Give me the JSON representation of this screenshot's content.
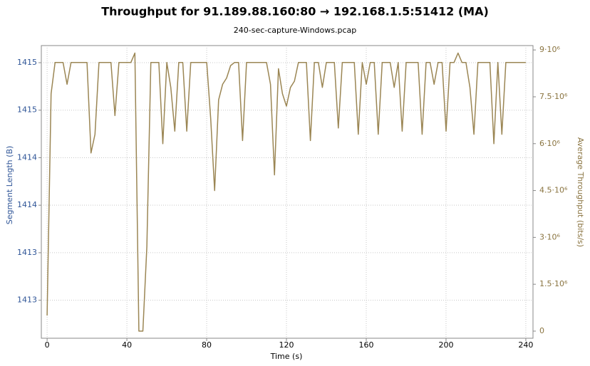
{
  "chart_data": {
    "type": "line",
    "title": "Throughput for 91.189.88.160:80 → 192.168.1.5:51412 (MA)",
    "subtitle": "240-sec-capture-Windows.pcap",
    "x_label": "Time (s)",
    "y_label": "Segment Length (B)",
    "y2_label": "Average Throughput (bits/s)",
    "xlim": [
      -2.9,
      243.6
    ],
    "xticks": [
      0,
      40,
      80,
      120,
      160,
      200,
      240
    ],
    "ylim": [
      1412.2,
      1415.28
    ],
    "yticks": [
      {
        "value": 1412.6,
        "label": "1413"
      },
      {
        "value": 1413.1,
        "label": "1413"
      },
      {
        "value": 1413.6,
        "label": "1414"
      },
      {
        "value": 1414.1,
        "label": "1414"
      },
      {
        "value": 1414.6,
        "label": "1415"
      },
      {
        "value": 1415.1,
        "label": "1415"
      }
    ],
    "y2lim": [
      -228000,
      9140000
    ],
    "y2ticks": [
      0,
      {
        "value": 1500000,
        "label": "1.5·10⁶"
      },
      {
        "value": 3000000,
        "label": "3·10⁶"
      },
      {
        "value": 4500000,
        "label": "4.5·10⁶"
      },
      {
        "value": 6000000,
        "label": "6·10⁶"
      },
      {
        "value": 7500000,
        "label": "7.5·10⁶"
      },
      {
        "value": 9000000,
        "label": "9·10⁶"
      }
    ],
    "grid": true,
    "x": [
      0,
      2,
      4,
      6,
      8,
      10,
      12,
      14,
      16,
      18,
      20,
      22,
      24,
      26,
      28,
      30,
      32,
      34,
      36,
      38,
      40,
      42,
      44,
      46,
      48,
      50,
      52,
      54,
      56,
      58,
      60,
      62,
      64,
      66,
      68,
      70,
      72,
      74,
      76,
      78,
      80,
      82,
      84,
      86,
      88,
      90,
      92,
      94,
      96,
      98,
      100,
      102,
      104,
      106,
      108,
      110,
      112,
      114,
      116,
      118,
      120,
      122,
      124,
      126,
      128,
      130,
      132,
      134,
      136,
      138,
      140,
      142,
      144,
      146,
      148,
      150,
      152,
      154,
      156,
      158,
      160,
      162,
      164,
      166,
      168,
      170,
      172,
      174,
      176,
      178,
      180,
      182,
      184,
      186,
      188,
      190,
      192,
      194,
      196,
      198,
      200,
      202,
      204,
      206,
      208,
      210,
      212,
      214,
      216,
      218,
      220,
      222,
      224,
      226,
      228,
      230,
      232,
      234,
      236,
      238,
      240
    ],
    "series": [
      {
        "color": "#9b8654",
        "axis": "y2",
        "values": [
          500000,
          7600000,
          8600000,
          8600000,
          8600000,
          7900000,
          8600000,
          8600000,
          8600000,
          8600000,
          8600000,
          5700000,
          6300000,
          8600000,
          8600000,
          8600000,
          8600000,
          6900000,
          8600000,
          8600000,
          8600000,
          8600000,
          8900000,
          0,
          0,
          2700000,
          8600000,
          8600000,
          8600000,
          6000000,
          8600000,
          7800000,
          6400000,
          8600000,
          8600000,
          6400000,
          8600000,
          8600000,
          8600000,
          8600000,
          8600000,
          6800000,
          4500000,
          7400000,
          7900000,
          8100000,
          8500000,
          8600000,
          8600000,
          6100000,
          8600000,
          8600000,
          8600000,
          8600000,
          8600000,
          8600000,
          7900000,
          5000000,
          8400000,
          7600000,
          7200000,
          7800000,
          8000000,
          8600000,
          8600000,
          8600000,
          6100000,
          8600000,
          8600000,
          7800000,
          8600000,
          8600000,
          8600000,
          6500000,
          8600000,
          8600000,
          8600000,
          8600000,
          6300000,
          8600000,
          7900000,
          8600000,
          8600000,
          6300000,
          8600000,
          8600000,
          8600000,
          7800000,
          8600000,
          6400000,
          8600000,
          8600000,
          8600000,
          8600000,
          6300000,
          8600000,
          8600000,
          7900000,
          8600000,
          8600000,
          6400000,
          8600000,
          8600000,
          8900000,
          8600000,
          8600000,
          7800000,
          6300000,
          8600000,
          8600000,
          8600000,
          8600000,
          6000000,
          8600000,
          6300000,
          8600000,
          8600000,
          8600000,
          8600000,
          8600000,
          8600000
        ]
      }
    ]
  }
}
